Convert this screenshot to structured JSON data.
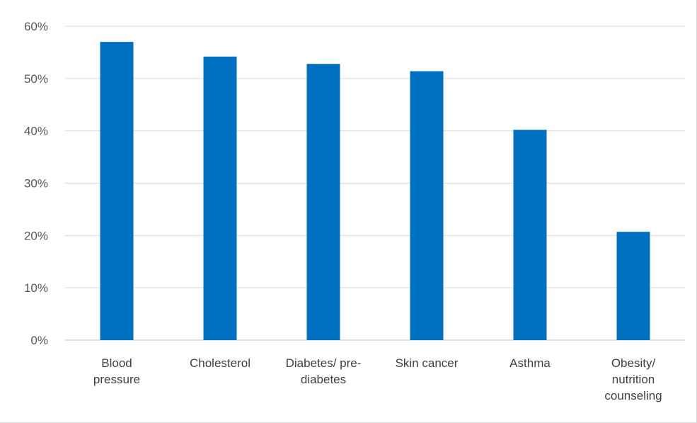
{
  "chart_data": {
    "type": "bar",
    "title": "",
    "xlabel": "",
    "ylabel": "",
    "categories": [
      [
        "Blood",
        "pressure"
      ],
      [
        "Cholesterol"
      ],
      [
        "Diabetes/ pre-",
        "diabetes"
      ],
      [
        "Skin cancer"
      ],
      [
        "Asthma"
      ],
      [
        "Obesity/",
        "nutrition",
        "counseling"
      ]
    ],
    "values": [
      0.57,
      0.542,
      0.528,
      0.514,
      0.402,
      0.207
    ],
    "ylim": [
      0,
      0.6
    ],
    "yticks": [
      "0%",
      "10%",
      "20%",
      "30%",
      "40%",
      "50%",
      "60%"
    ],
    "grid": true,
    "legend": "none",
    "bar_color": "#0070c0",
    "grid_color": "#d9d9d9",
    "axis_color": "#bfbfbf"
  }
}
